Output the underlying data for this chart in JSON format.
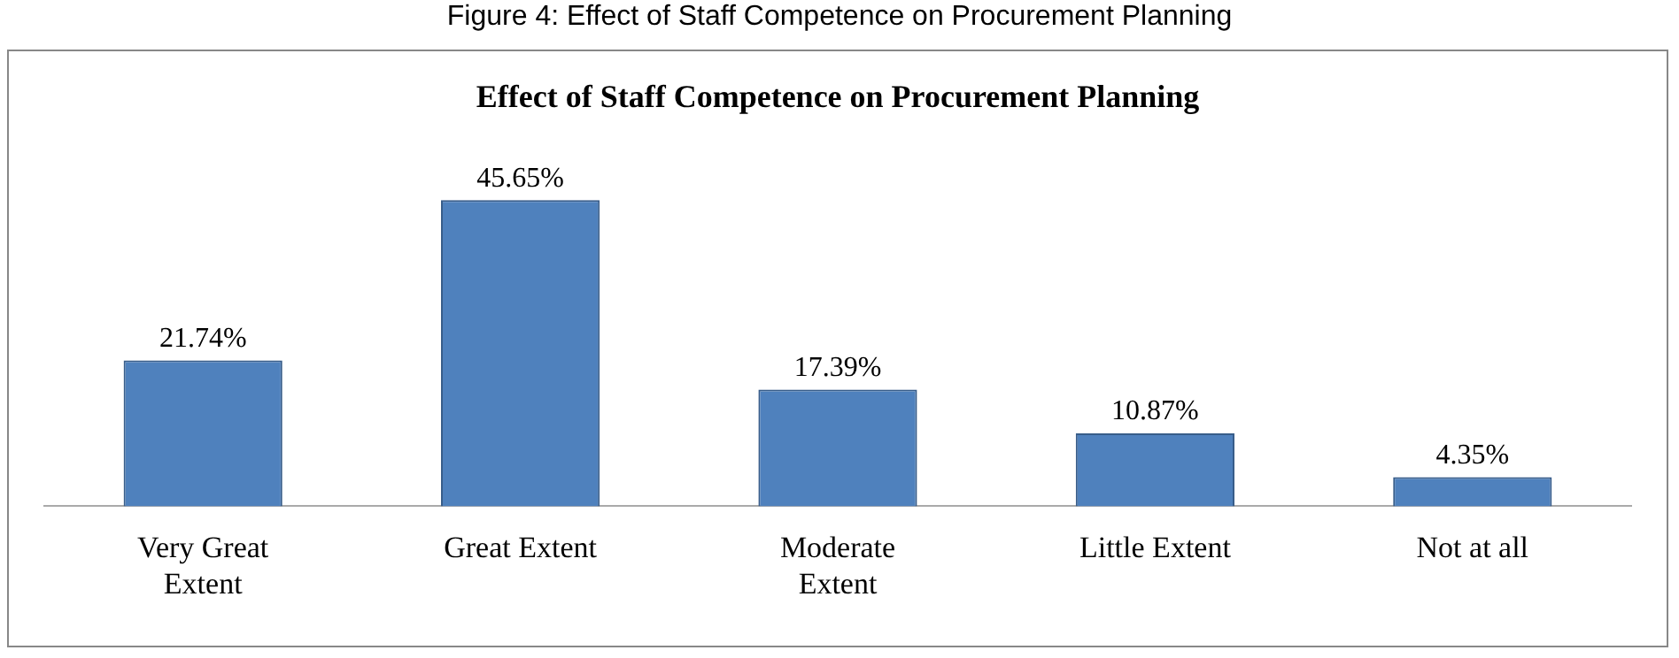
{
  "chart_data": {
    "type": "bar",
    "title": "Effect of Staff Competence on Procurement Planning",
    "annotations": [
      "Figure 4: Effect of Staff Competence on Procurement Planning"
    ],
    "categories": [
      "Very Great Extent",
      "Great Extent",
      "Moderate Extent",
      "Little Extent",
      "Not at all"
    ],
    "values": [
      21.74,
      45.65,
      17.39,
      10.87,
      4.35
    ],
    "color": "#4f81bd",
    "value_labels": [
      "21.74%",
      "45.65%",
      "17.39%",
      "10.87%",
      "4.35%"
    ],
    "grid": false,
    "legend": false
  }
}
